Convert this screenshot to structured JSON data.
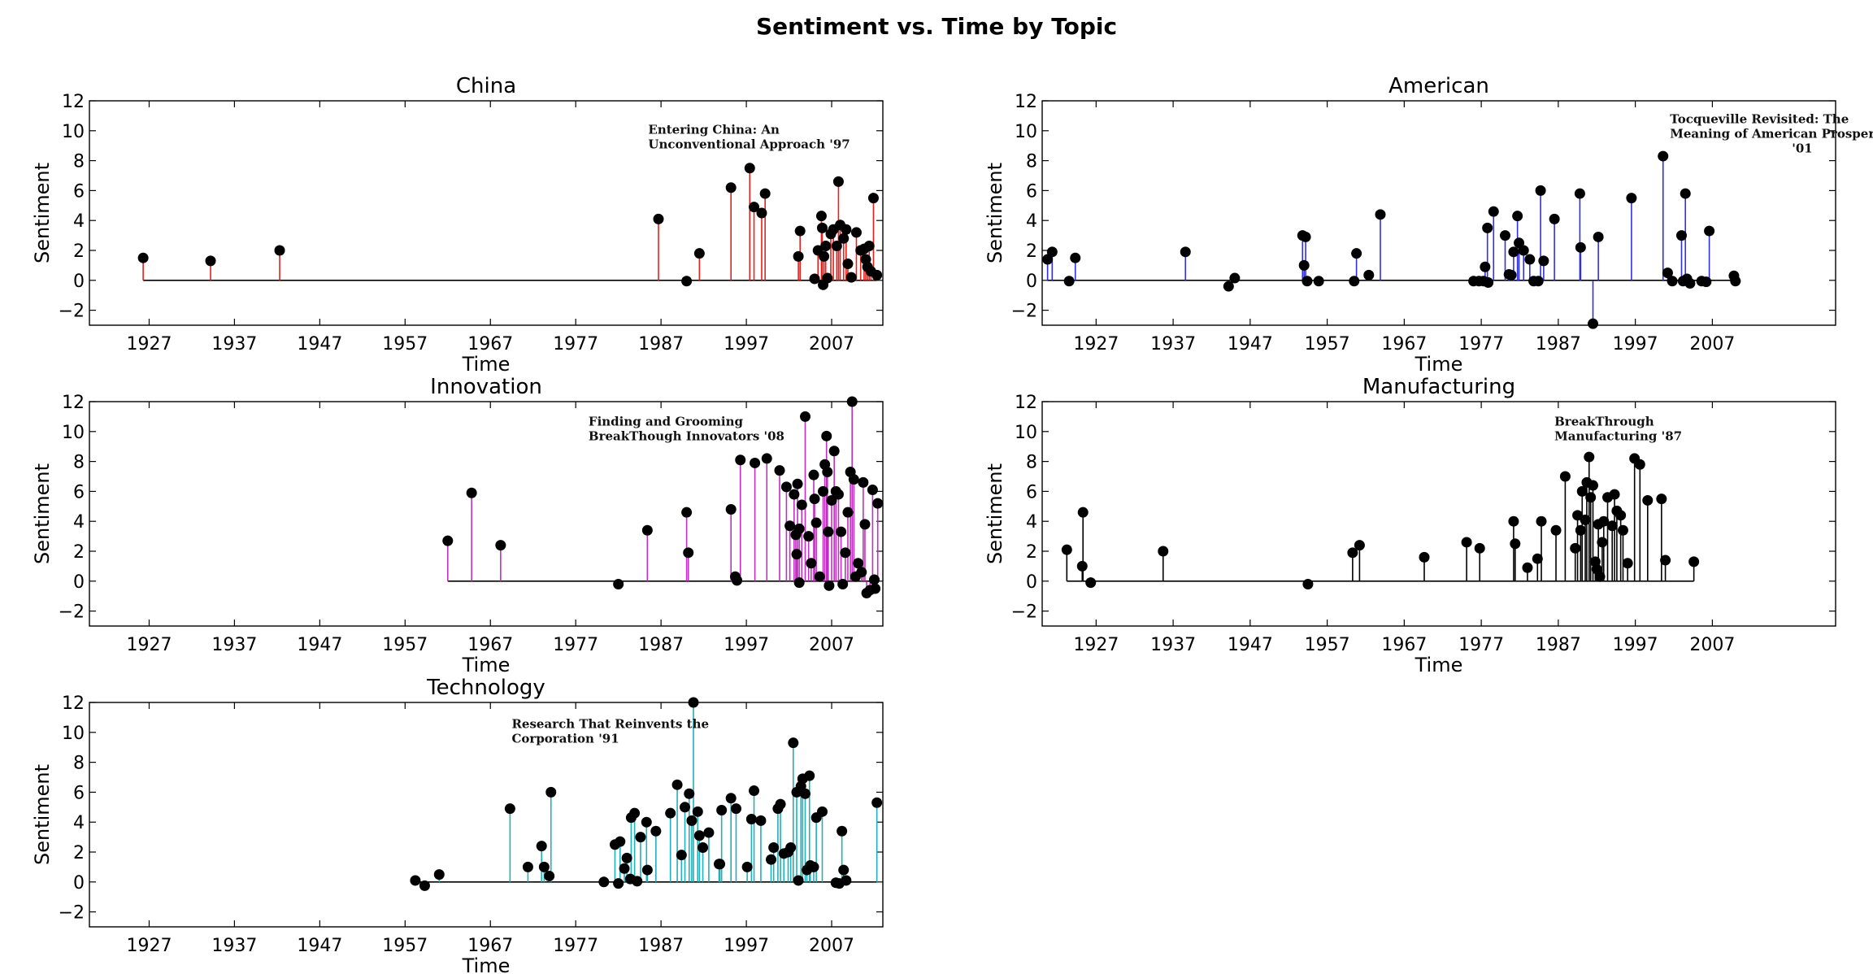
{
  "suptitle": "Sentiment vs. Time by Topic",
  "chart_data": [
    {
      "type": "stem",
      "title": "China",
      "xlabel": "Time",
      "ylabel": "Sentiment",
      "color": "#e8201c",
      "xlim": [
        1920,
        2013
      ],
      "ylim": [
        -3,
        12
      ],
      "xticks": [
        1927,
        1937,
        1947,
        1957,
        1967,
        1977,
        1987,
        1997,
        2007
      ],
      "yticks": [
        -2,
        0,
        2,
        4,
        6,
        8,
        10,
        12
      ],
      "annotation": {
        "lines": [
          "Entering China: An",
          "Unconventional Approach '97"
        ],
        "x": 1985.5,
        "y": 9.8
      },
      "points": [
        [
          1926.3,
          1.5
        ],
        [
          1934.2,
          1.3
        ],
        [
          1942.3,
          2.0
        ],
        [
          1986.7,
          4.1
        ],
        [
          1990.0,
          -0.05
        ],
        [
          1991.5,
          1.8
        ],
        [
          1995.2,
          6.2
        ],
        [
          1997.4,
          7.5
        ],
        [
          1997.9,
          4.9
        ],
        [
          1998.8,
          4.5
        ],
        [
          1999.2,
          5.8
        ],
        [
          2003.3,
          3.3
        ],
        [
          2003.1,
          1.6
        ],
        [
          2005.0,
          0.1
        ],
        [
          2005.4,
          2.0
        ],
        [
          2005.8,
          4.3
        ],
        [
          2005.9,
          3.5
        ],
        [
          2006.1,
          1.6
        ],
        [
          2006.3,
          2.3
        ],
        [
          2006.0,
          -0.3
        ],
        [
          2006.5,
          0.15
        ],
        [
          2006.9,
          3.1
        ],
        [
          2007.2,
          3.4
        ],
        [
          2007.6,
          2.3
        ],
        [
          2007.8,
          6.6
        ],
        [
          2008.0,
          3.7
        ],
        [
          2008.4,
          2.8
        ],
        [
          2008.7,
          3.4
        ],
        [
          2008.9,
          1.1
        ],
        [
          2009.3,
          0.2
        ],
        [
          2009.9,
          3.2
        ],
        [
          2010.4,
          2.0
        ],
        [
          2010.8,
          2.1
        ],
        [
          2011.0,
          1.4
        ],
        [
          2011.2,
          0.9
        ],
        [
          2011.4,
          2.3
        ],
        [
          2011.6,
          0.6
        ],
        [
          2011.9,
          5.5
        ],
        [
          2012.3,
          0.35
        ]
      ]
    },
    {
      "type": "stem",
      "title": "American",
      "xlabel": "Time",
      "ylabel": "Sentiment",
      "color": "#3030e0",
      "xlim": [
        1920,
        2023
      ],
      "ylim": [
        -3,
        12
      ],
      "xticks": [
        1927,
        1937,
        1947,
        1957,
        1967,
        1977,
        1987,
        1997,
        2007
      ],
      "yticks": [
        -2,
        0,
        2,
        4,
        6,
        8,
        10,
        12
      ],
      "annotation": {
        "lines": [
          "Tocqueville Revisited: The",
          "Meaning of American Prosperity",
          "'01"
        ],
        "x": 2001.5,
        "y": 10.5
      },
      "points": [
        [
          1920.7,
          1.4
        ],
        [
          1921.3,
          1.9
        ],
        [
          1923.5,
          -0.05
        ],
        [
          1924.3,
          1.5
        ],
        [
          1938.6,
          1.9
        ],
        [
          1944.2,
          -0.4
        ],
        [
          1945.0,
          0.15
        ],
        [
          1953.8,
          3.0
        ],
        [
          1954.2,
          2.9
        ],
        [
          1954.0,
          1.0
        ],
        [
          1954.4,
          -0.05
        ],
        [
          1955.9,
          -0.05
        ],
        [
          1960.5,
          -0.05
        ],
        [
          1960.8,
          1.8
        ],
        [
          1962.4,
          0.35
        ],
        [
          1963.9,
          4.4
        ],
        [
          1976.0,
          -0.05
        ],
        [
          1976.7,
          -0.05
        ],
        [
          1977.3,
          -0.05
        ],
        [
          1977.5,
          0.9
        ],
        [
          1977.8,
          3.5
        ],
        [
          1977.9,
          -0.15
        ],
        [
          1978.6,
          4.6
        ],
        [
          1980.1,
          3.0
        ],
        [
          1980.6,
          0.4
        ],
        [
          1980.9,
          0.35
        ],
        [
          1981.2,
          1.9
        ],
        [
          1981.7,
          4.3
        ],
        [
          1981.9,
          2.5
        ],
        [
          1982.5,
          2.0
        ],
        [
          1983.3,
          1.4
        ],
        [
          1983.8,
          -0.05
        ],
        [
          1984.4,
          -0.05
        ],
        [
          1984.7,
          6.0
        ],
        [
          1985.1,
          1.3
        ],
        [
          1986.5,
          4.1
        ],
        [
          1989.8,
          5.8
        ],
        [
          1989.9,
          2.2
        ],
        [
          1991.5,
          -2.9
        ],
        [
          1992.2,
          2.9
        ],
        [
          1996.5,
          5.5
        ],
        [
          2000.6,
          8.3
        ],
        [
          2001.2,
          0.5
        ],
        [
          2001.8,
          -0.05
        ],
        [
          2003.0,
          3.0
        ],
        [
          2003.2,
          -0.05
        ],
        [
          2003.5,
          5.8
        ],
        [
          2003.7,
          0.1
        ],
        [
          2004.1,
          -0.2
        ],
        [
          2005.6,
          -0.05
        ],
        [
          2006.2,
          -0.1
        ],
        [
          2006.6,
          3.3
        ],
        [
          2009.8,
          0.3
        ],
        [
          2010.0,
          -0.05
        ]
      ]
    },
    {
      "type": "stem",
      "title": "Innovation",
      "xlabel": "Time",
      "ylabel": "Sentiment",
      "color": "#c030c0",
      "xlim": [
        1920,
        2013
      ],
      "ylim": [
        -3,
        12
      ],
      "xticks": [
        1927,
        1937,
        1947,
        1957,
        1967,
        1977,
        1987,
        1997,
        2007
      ],
      "yticks": [
        -2,
        0,
        2,
        4,
        6,
        8,
        10,
        12
      ],
      "annotation": {
        "lines": [
          "Finding and Grooming",
          "BreakThough Innovators '08"
        ],
        "x": 1978.5,
        "y": 10.4
      },
      "points": [
        [
          1962.0,
          2.7
        ],
        [
          1964.8,
          5.9
        ],
        [
          1968.2,
          2.4
        ],
        [
          1982.0,
          -0.2
        ],
        [
          1985.4,
          3.4
        ],
        [
          1990.0,
          4.6
        ],
        [
          1990.2,
          1.9
        ],
        [
          1995.2,
          4.8
        ],
        [
          1995.7,
          0.3
        ],
        [
          1995.9,
          0.05
        ],
        [
          1996.3,
          8.1
        ],
        [
          1998.0,
          7.9
        ],
        [
          1999.4,
          8.2
        ],
        [
          2000.9,
          7.4
        ],
        [
          2001.7,
          6.3
        ],
        [
          2002.1,
          3.7
        ],
        [
          2002.6,
          5.8
        ],
        [
          2002.8,
          3.1
        ],
        [
          2003.0,
          6.5
        ],
        [
          2003.2,
          3.5
        ],
        [
          2002.9,
          1.8
        ],
        [
          2003.2,
          -0.1
        ],
        [
          2003.5,
          5.1
        ],
        [
          2003.9,
          11.0
        ],
        [
          2004.3,
          3.0
        ],
        [
          2004.6,
          1.2
        ],
        [
          2004.9,
          7.1
        ],
        [
          2005.0,
          5.5
        ],
        [
          2005.2,
          3.9
        ],
        [
          2005.6,
          0.3
        ],
        [
          2006.0,
          6.0
        ],
        [
          2006.2,
          7.8
        ],
        [
          2006.4,
          9.7
        ],
        [
          2006.5,
          7.3
        ],
        [
          2006.6,
          3.3
        ],
        [
          2006.7,
          -0.3
        ],
        [
          2007.0,
          5.4
        ],
        [
          2007.3,
          8.7
        ],
        [
          2007.5,
          6.0
        ],
        [
          2007.8,
          5.8
        ],
        [
          2008.1,
          3.3
        ],
        [
          2008.3,
          -0.2
        ],
        [
          2008.6,
          1.9
        ],
        [
          2008.9,
          4.6
        ],
        [
          2009.2,
          7.3
        ],
        [
          2009.4,
          12.0
        ],
        [
          2009.6,
          6.8
        ],
        [
          2009.8,
          0.3
        ],
        [
          2010.1,
          1.2
        ],
        [
          2010.5,
          0.6
        ],
        [
          2010.7,
          6.6
        ],
        [
          2010.9,
          3.8
        ],
        [
          2011.1,
          -0.8
        ],
        [
          2011.5,
          -0.6
        ],
        [
          2011.8,
          6.1
        ],
        [
          2012.0,
          0.1
        ],
        [
          2012.1,
          -0.5
        ],
        [
          2012.4,
          5.2
        ]
      ]
    },
    {
      "type": "stem",
      "title": "Manufacturing",
      "xlabel": "Time",
      "ylabel": "Sentiment",
      "color": "#000000",
      "xlim": [
        1920,
        2023
      ],
      "ylim": [
        -3,
        12
      ],
      "xticks": [
        1927,
        1937,
        1947,
        1957,
        1967,
        1977,
        1987,
        1997,
        2007
      ],
      "yticks": [
        -2,
        0,
        2,
        4,
        6,
        8,
        10,
        12
      ],
      "annotation": {
        "lines": [
          "BreakThrough",
          "Manufacturing '87"
        ],
        "x": 1986.5,
        "y": 10.4
      },
      "points": [
        [
          1923.2,
          2.1
        ],
        [
          1925.2,
          1.0
        ],
        [
          1925.3,
          4.6
        ],
        [
          1926.3,
          -0.1
        ],
        [
          1935.7,
          2.0
        ],
        [
          1954.5,
          -0.2
        ],
        [
          1960.3,
          1.9
        ],
        [
          1961.2,
          2.4
        ],
        [
          1969.6,
          1.6
        ],
        [
          1975.1,
          2.6
        ],
        [
          1976.8,
          2.2
        ],
        [
          1981.2,
          4.0
        ],
        [
          1981.4,
          2.5
        ],
        [
          1983.0,
          0.9
        ],
        [
          1984.3,
          1.5
        ],
        [
          1984.8,
          4.0
        ],
        [
          1986.7,
          3.4
        ],
        [
          1987.9,
          7.0
        ],
        [
          1989.2,
          2.2
        ],
        [
          1989.5,
          4.4
        ],
        [
          1989.9,
          3.4
        ],
        [
          1990.1,
          6.0
        ],
        [
          1990.5,
          4.1
        ],
        [
          1990.7,
          6.6
        ],
        [
          1991.0,
          8.3
        ],
        [
          1991.2,
          5.6
        ],
        [
          1991.5,
          6.4
        ],
        [
          1991.8,
          1.3
        ],
        [
          1992.0,
          0.8
        ],
        [
          1992.2,
          3.8
        ],
        [
          1992.4,
          0.3
        ],
        [
          1992.7,
          2.6
        ],
        [
          1992.9,
          4.0
        ],
        [
          1993.4,
          5.6
        ],
        [
          1994.0,
          3.7
        ],
        [
          1994.3,
          5.8
        ],
        [
          1994.6,
          4.7
        ],
        [
          1995.1,
          4.4
        ],
        [
          1995.4,
          3.4
        ],
        [
          1996.0,
          1.2
        ],
        [
          1996.9,
          8.2
        ],
        [
          1997.6,
          7.8
        ],
        [
          1998.6,
          5.4
        ],
        [
          2000.4,
          5.5
        ],
        [
          2000.9,
          1.4
        ],
        [
          2004.6,
          1.3
        ]
      ]
    },
    {
      "type": "stem",
      "title": "Technology",
      "xlabel": "Time",
      "ylabel": "Sentiment",
      "color": "#20b0b8",
      "xlim": [
        1920,
        2013
      ],
      "ylim": [
        -3,
        12
      ],
      "xticks": [
        1927,
        1937,
        1947,
        1957,
        1967,
        1977,
        1987,
        1997,
        2007
      ],
      "yticks": [
        -2,
        0,
        2,
        4,
        6,
        8,
        10,
        12
      ],
      "annotation": {
        "lines": [
          "Research That Reinvents the",
          "Corporation '91"
        ],
        "x": 1969.5,
        "y": 10.3
      },
      "points": [
        [
          1958.2,
          0.1
        ],
        [
          1959.3,
          -0.25
        ],
        [
          1961.0,
          0.5
        ],
        [
          1969.3,
          4.9
        ],
        [
          1971.4,
          1.0
        ],
        [
          1973.3,
          1.0
        ],
        [
          1973.0,
          2.4
        ],
        [
          1973.9,
          0.4
        ],
        [
          1974.1,
          6.0
        ],
        [
          1980.3,
          0.0
        ],
        [
          1981.6,
          2.5
        ],
        [
          1982.2,
          2.7
        ],
        [
          1982.0,
          -0.1
        ],
        [
          1982.7,
          0.9
        ],
        [
          1983.0,
          1.6
        ],
        [
          1983.4,
          0.2
        ],
        [
          1983.5,
          4.3
        ],
        [
          1983.9,
          4.6
        ],
        [
          1984.2,
          0.05
        ],
        [
          1984.6,
          3.0
        ],
        [
          1985.3,
          4.0
        ],
        [
          1985.4,
          0.8
        ],
        [
          1986.4,
          3.4
        ],
        [
          1988.1,
          4.6
        ],
        [
          1988.9,
          6.5
        ],
        [
          1989.4,
          1.8
        ],
        [
          1989.8,
          5.0
        ],
        [
          1990.3,
          5.9
        ],
        [
          1990.6,
          4.1
        ],
        [
          1990.8,
          12.0
        ],
        [
          1991.3,
          4.7
        ],
        [
          1991.5,
          3.1
        ],
        [
          1991.9,
          2.3
        ],
        [
          1992.6,
          3.3
        ],
        [
          1993.8,
          1.2
        ],
        [
          1993.9,
          1.2
        ],
        [
          1994.1,
          4.8
        ],
        [
          1995.2,
          5.6
        ],
        [
          1995.8,
          4.9
        ],
        [
          1997.1,
          1.0
        ],
        [
          1997.6,
          4.2
        ],
        [
          1997.9,
          6.1
        ],
        [
          1998.7,
          4.1
        ],
        [
          1999.9,
          1.5
        ],
        [
          2000.2,
          2.3
        ],
        [
          2000.7,
          4.9
        ],
        [
          2001.0,
          5.2
        ],
        [
          2001.4,
          1.9
        ],
        [
          2001.9,
          2.0
        ],
        [
          2002.2,
          2.3
        ],
        [
          2002.5,
          9.3
        ],
        [
          2002.9,
          6.0
        ],
        [
          2003.1,
          0.1
        ],
        [
          2003.4,
          6.4
        ],
        [
          2003.6,
          6.9
        ],
        [
          2003.9,
          5.9
        ],
        [
          2004.1,
          0.8
        ],
        [
          2004.4,
          7.1
        ],
        [
          2004.5,
          1.1
        ],
        [
          2004.9,
          1.0
        ],
        [
          2005.2,
          4.3
        ],
        [
          2005.9,
          4.7
        ],
        [
          2007.5,
          -0.05
        ],
        [
          2007.9,
          -0.1
        ],
        [
          2008.2,
          3.4
        ],
        [
          2008.4,
          0.8
        ],
        [
          2008.7,
          0.1
        ],
        [
          2012.3,
          5.3
        ]
      ]
    }
  ]
}
